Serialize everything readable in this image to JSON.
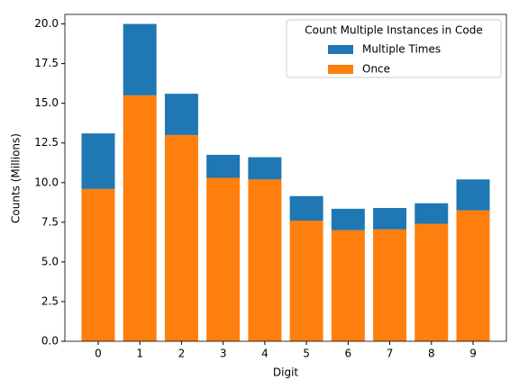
{
  "chart_data": {
    "type": "stacked-bar",
    "categories": [
      "0",
      "1",
      "2",
      "3",
      "4",
      "5",
      "6",
      "7",
      "8",
      "9"
    ],
    "series": [
      {
        "name": "Once",
        "color": "#ff7f0e",
        "values": [
          9.6,
          15.5,
          13.0,
          10.3,
          10.2,
          7.6,
          7.0,
          7.05,
          7.4,
          8.25
        ]
      },
      {
        "name": "Multiple Times",
        "color": "#1f77b4",
        "values": [
          3.5,
          4.5,
          2.6,
          1.45,
          1.4,
          1.55,
          1.35,
          1.35,
          1.3,
          1.95
        ]
      }
    ],
    "xlabel": "Digit",
    "ylabel": "Counts (Millions)",
    "legend_title": "Count Multiple Instances in Code",
    "legend": "upper right",
    "ylim": [
      0,
      20.6
    ],
    "yticks": [
      {
        "value": 0,
        "label": "0.0"
      },
      {
        "value": 2.5,
        "label": "2.5"
      },
      {
        "value": 5,
        "label": "5.0"
      },
      {
        "value": 7.5,
        "label": "7.5"
      },
      {
        "value": 10,
        "label": "10.0"
      },
      {
        "value": 12.5,
        "label": "12.5"
      },
      {
        "value": 15,
        "label": "15.0"
      },
      {
        "value": 17.5,
        "label": "17.5"
      },
      {
        "value": 20,
        "label": "20.0"
      }
    ]
  }
}
